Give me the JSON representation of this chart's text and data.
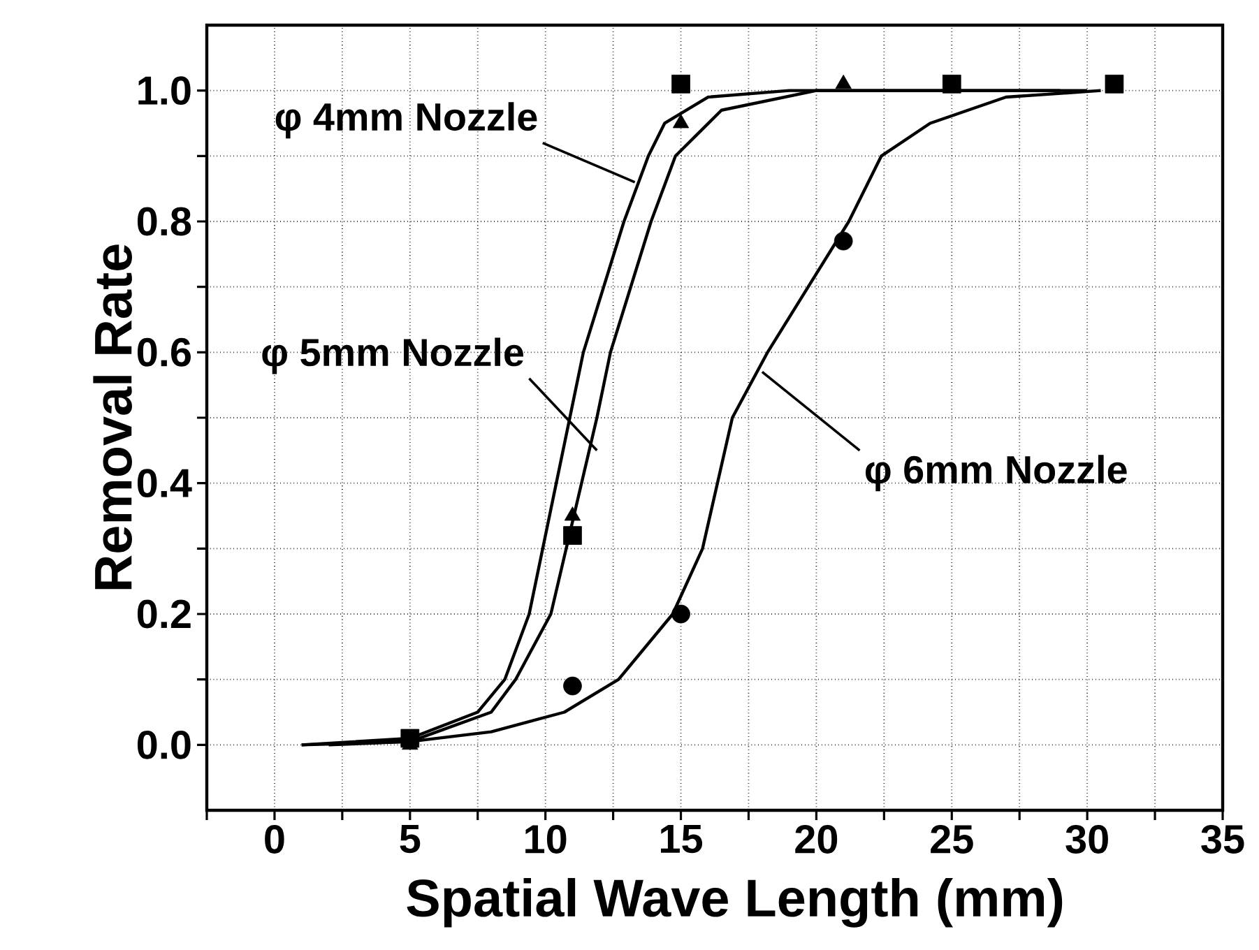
{
  "chart_data": {
    "type": "scatter",
    "xlabel": "Spatial Wave Length (mm)",
    "ylabel": "Removal Rate",
    "xlim": [
      -2.5,
      35
    ],
    "ylim": [
      -0.1,
      1.1
    ],
    "xticks": [
      {
        "value": -2.5,
        "label": null
      },
      0,
      {
        "value": 2.5,
        "label": null
      },
      5,
      {
        "value": 7.5,
        "label": null
      },
      10,
      {
        "value": 12.5,
        "label": null
      },
      15,
      {
        "value": 17.5,
        "label": null
      },
      20,
      {
        "value": 22.5,
        "label": null
      },
      25,
      {
        "value": 27.5,
        "label": null
      },
      30,
      {
        "value": 32.5,
        "label": null
      },
      35
    ],
    "yticks": [
      {
        "value": 0,
        "label": "0.0"
      },
      {
        "value": 0.1,
        "label": null
      },
      0.2,
      {
        "value": 0.3,
        "label": null
      },
      0.4,
      {
        "value": 0.5,
        "label": null
      },
      0.6,
      {
        "value": 0.7,
        "label": null
      },
      0.8,
      {
        "value": 0.9,
        "label": null
      },
      {
        "value": 1.0,
        "label": "1.0"
      }
    ],
    "grid": true,
    "series": [
      {
        "marker": "square",
        "color": "#000000",
        "x": [
          5,
          11,
          15,
          25,
          31
        ],
        "values": [
          0.01,
          0.32,
          1.01,
          1.01,
          1.01
        ]
      },
      {
        "marker": "circle",
        "color": "#000000",
        "x": [
          11,
          15,
          21
        ],
        "values": [
          0.09,
          0.2,
          0.77
        ]
      },
      {
        "marker": "triangle",
        "color": "#000000",
        "x": [
          5,
          11,
          15,
          21
        ],
        "values": [
          0.0,
          0.35,
          0.95,
          1.01
        ]
      },
      {
        "type": "line",
        "marker": "none",
        "line_style": "solid",
        "color": "#000000",
        "x": [
          1,
          5,
          7.5,
          8.5,
          9.4,
          10.9,
          11.4,
          12.9,
          13.8,
          14.4,
          16,
          19,
          30
        ],
        "values": [
          0,
          0.01,
          0.05,
          0.1,
          0.2,
          0.5,
          0.6,
          0.8,
          0.9,
          0.95,
          0.99,
          1.0,
          1.0
        ]
      },
      {
        "type": "line",
        "marker": "none",
        "line_style": "solid",
        "color": "#000000",
        "x": [
          2,
          5,
          8,
          8.9,
          10.2,
          11.9,
          12.4,
          13.9,
          14.8,
          16.5,
          20,
          29
        ],
        "values": [
          0,
          0.005,
          0.05,
          0.1,
          0.2,
          0.5,
          0.6,
          0.8,
          0.9,
          0.97,
          1.0,
          1.0
        ]
      },
      {
        "type": "line",
        "marker": "none",
        "line_style": "solid",
        "color": "#000000",
        "x": [
          1,
          5,
          8,
          10.7,
          12.7,
          14.7,
          15.8,
          16.9,
          18.2,
          19.7,
          21.2,
          22.4,
          24.2,
          27,
          30.5
        ],
        "values": [
          0,
          0.005,
          0.02,
          0.05,
          0.1,
          0.2,
          0.3,
          0.5,
          0.6,
          0.7,
          0.8,
          0.9,
          0.95,
          0.99,
          1.0
        ]
      }
    ],
    "annotations": [
      {
        "text": "φ 4mm Nozzle",
        "x": 13.3,
        "y": 0.86
      },
      {
        "text": "φ 5mm Nozzle",
        "x": 11.9,
        "y": 0.45
      },
      {
        "text": "φ 6mm Nozzle",
        "x": 18.0,
        "y": 0.57
      }
    ]
  }
}
